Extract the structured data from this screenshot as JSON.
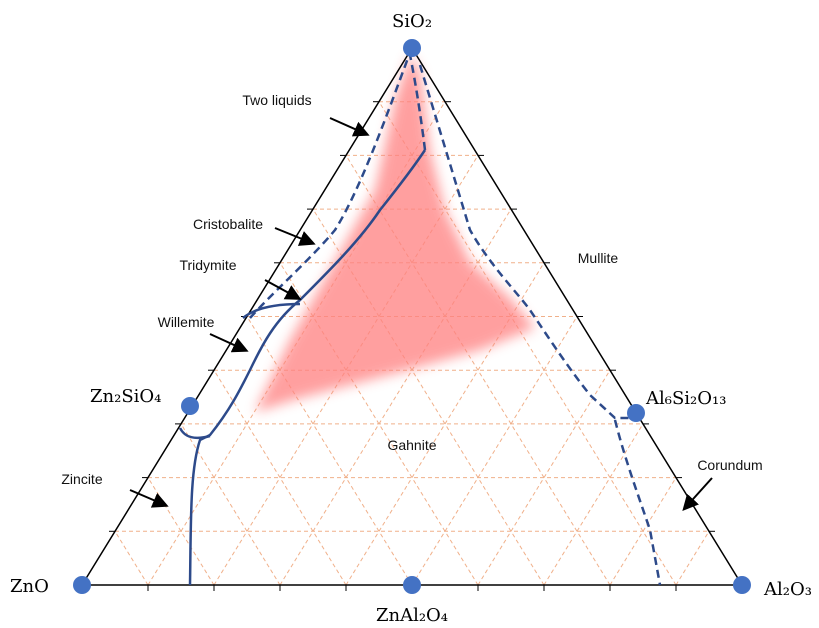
{
  "vertices": [
    {
      "label": "SiO₂"
    },
    {
      "label": "ZnO"
    },
    {
      "label": "Al₂O₃"
    }
  ],
  "compounds": [
    {
      "label": "Zn₂SiO₄"
    },
    {
      "label": "Al₆Si₂O₁₃"
    },
    {
      "label": "ZnAl₂O₄"
    }
  ],
  "regions": [
    {
      "label": "Two liquids"
    },
    {
      "label": "Cristobalite"
    },
    {
      "label": "Tridymite"
    },
    {
      "label": "Willemite"
    },
    {
      "label": "Zincite"
    },
    {
      "label": "Mullite"
    },
    {
      "label": "Gahnite"
    },
    {
      "label": "Corundum"
    }
  ]
}
